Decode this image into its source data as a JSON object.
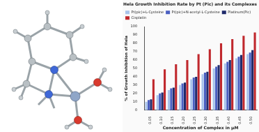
{
  "chart_data": {
    "type": "bar",
    "title": "Hela Growth Inhibition Rate by Pt (Pic) and its Complexes",
    "x_label": "Concentration of Complex in μM",
    "y_label": "% of Growth Inhibition of Hela",
    "categories": [
      "0.05",
      "0.10",
      "0.15",
      "0.20",
      "0.25",
      "0.30",
      "0.35",
      "0.40",
      "0.45",
      "0.50"
    ],
    "series": [
      {
        "name": "Pt(pic)+L-Cysteine",
        "color": "#a9c4eb",
        "values": [
          10,
          18,
          24,
          30,
          37,
          43,
          50,
          56,
          62,
          67
        ]
      },
      {
        "name": "Pt(pic)+N-acetyl-L-Cysteine",
        "color": "#4a5fc1",
        "values": [
          12,
          20,
          26,
          32,
          39,
          45,
          52,
          58,
          64,
          69
        ]
      },
      {
        "name": "Platinum(Pic)",
        "color": "#1f2a6b",
        "values": [
          13,
          21,
          27,
          33,
          40,
          46,
          54,
          60,
          66,
          72
        ]
      },
      {
        "name": "Cisplatin",
        "color": "#c0282d",
        "values": [
          37,
          49,
          55,
          60,
          67,
          73,
          80,
          85,
          89,
          93
        ]
      }
    ],
    "ylim": [
      0,
      100
    ],
    "yticks": [
      0,
      10,
      20,
      30,
      40,
      50,
      60,
      70,
      80,
      90,
      100
    ],
    "grid": false,
    "legend": "top"
  }
}
